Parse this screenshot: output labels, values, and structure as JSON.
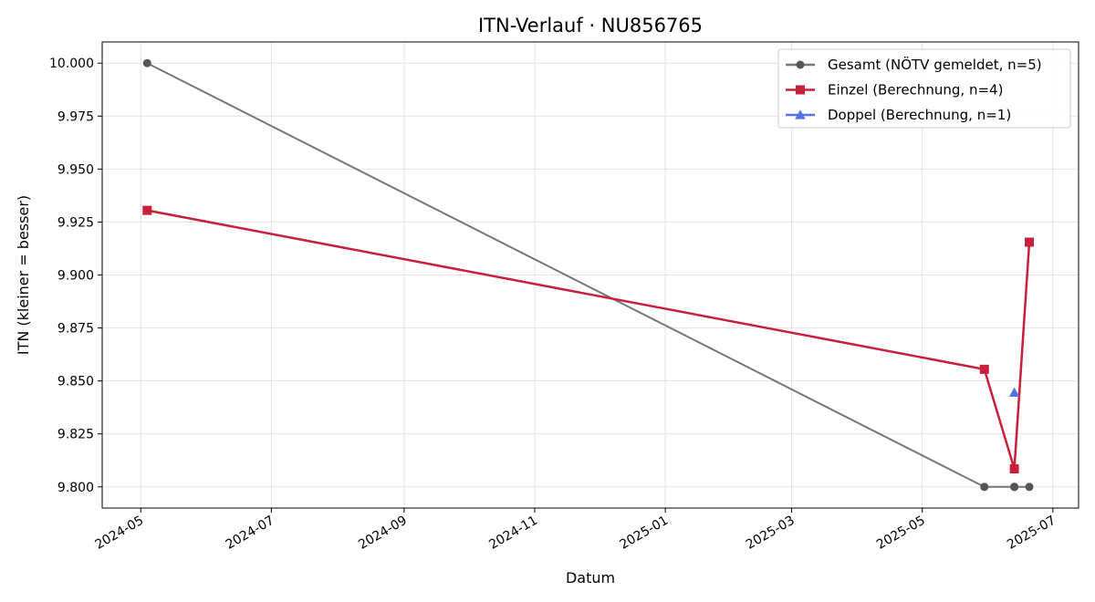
{
  "chart_data": {
    "type": "line",
    "title": "ITN-Verlauf · NU856765",
    "xlabel": "Datum",
    "ylabel": "ITN  (kleiner = besser)",
    "xlim": [
      "2024-04-13",
      "2025-07-13"
    ],
    "ylim": [
      9.79,
      10.01
    ],
    "x_ticks": [
      "2024-05-01",
      "2024-07-01",
      "2024-09-01",
      "2024-11-01",
      "2025-01-01",
      "2025-03-01",
      "2025-05-01",
      "2025-07-01"
    ],
    "x_tick_labels": [
      "2024-05",
      "2024-07",
      "2024-09",
      "2024-11",
      "2025-01",
      "2025-03",
      "2025-05",
      "2025-07"
    ],
    "y_ticks": [
      9.8,
      9.825,
      9.85,
      9.875,
      9.9,
      9.925,
      9.95,
      9.975,
      10.0
    ],
    "y_tick_labels": [
      "9.800",
      "9.825",
      "9.850",
      "9.875",
      "9.900",
      "9.925",
      "9.950",
      "9.975",
      "10.000"
    ],
    "grid": true,
    "legend_position": "top-right",
    "series": [
      {
        "name": "Gesamt (NÖTV gemeldet, n=5)",
        "color": "#777777",
        "marker": "circle",
        "points": [
          {
            "x": "2024-05-04",
            "y": 10.0
          },
          {
            "x": "2025-05-30",
            "y": 9.8
          },
          {
            "x": "2025-06-13",
            "y": 9.8
          },
          {
            "x": "2025-06-13",
            "y": 9.8
          },
          {
            "x": "2025-06-20",
            "y": 9.8
          }
        ]
      },
      {
        "name": "Einzel (Berechnung, n=4)",
        "color": "#c8203c",
        "marker": "square",
        "points": [
          {
            "x": "2024-05-04",
            "y": 9.9305
          },
          {
            "x": "2025-05-30",
            "y": 9.8555
          },
          {
            "x": "2025-06-13",
            "y": 9.8085
          },
          {
            "x": "2025-06-20",
            "y": 9.9155
          }
        ]
      },
      {
        "name": "Doppel (Berechnung, n=1)",
        "color": "#5274e8",
        "marker": "triangle",
        "points": [
          {
            "x": "2025-06-13",
            "y": 9.8445
          }
        ]
      }
    ]
  }
}
